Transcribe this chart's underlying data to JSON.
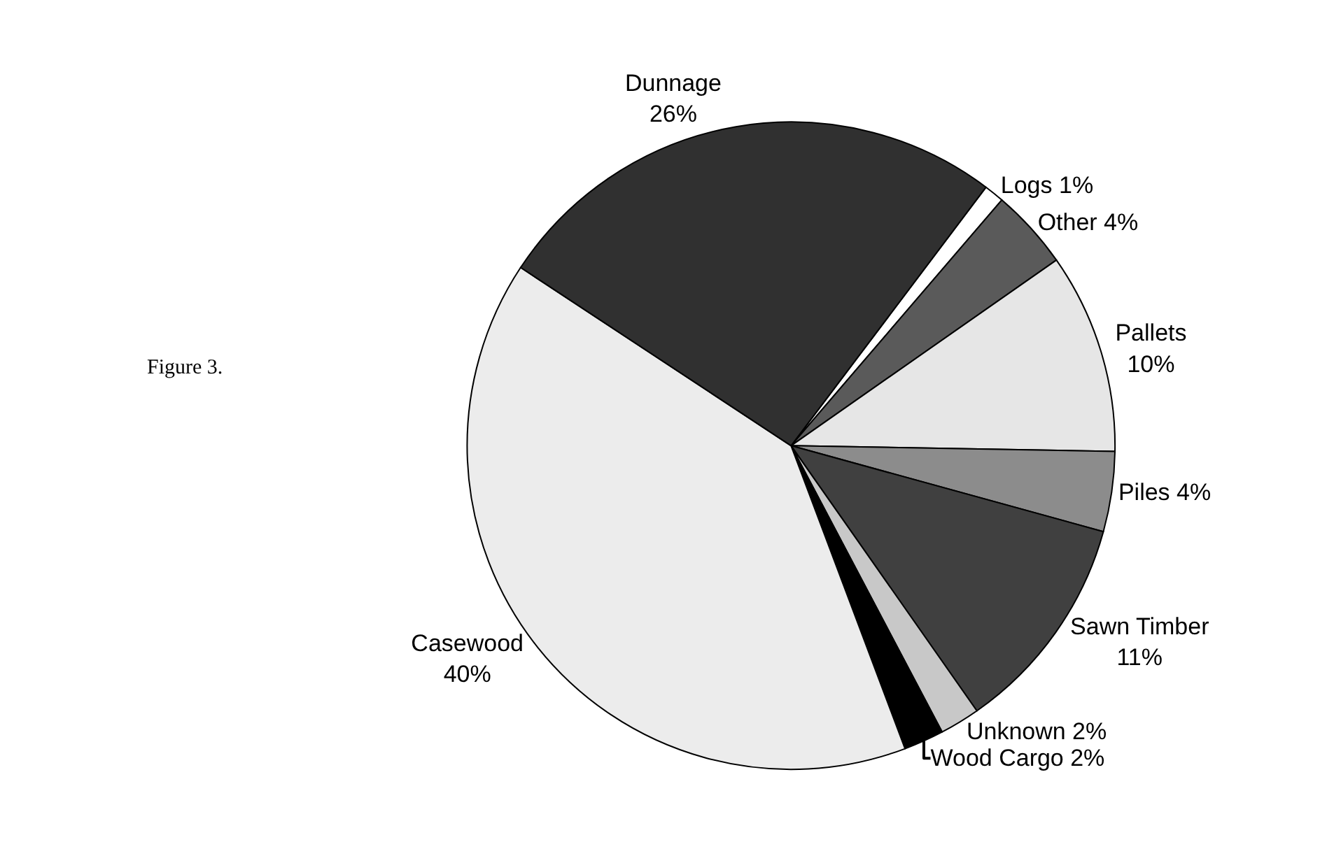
{
  "chart_data": {
    "type": "pie",
    "categories": [
      "Logs",
      "Other",
      "Pallets",
      "Piles",
      "Sawn Timber",
      "Unknown",
      "Wood Cargo",
      "Casewood",
      "Dunnage"
    ],
    "values": [
      1,
      4,
      10,
      4,
      11,
      2,
      2,
      40,
      26
    ],
    "value_labels": [
      "1%",
      "4%",
      "10%",
      "4%",
      "11%",
      "2%",
      "2%",
      "40%",
      "26%"
    ],
    "colors": [
      "#ffffff",
      "#5a5a5a",
      "#e6e6e6",
      "#8c8c8c",
      "#404040",
      "#c8c8c8",
      "#000000",
      "#ececec",
      "#303030"
    ],
    "annotations": [
      "Figure 3."
    ],
    "legend": false
  }
}
